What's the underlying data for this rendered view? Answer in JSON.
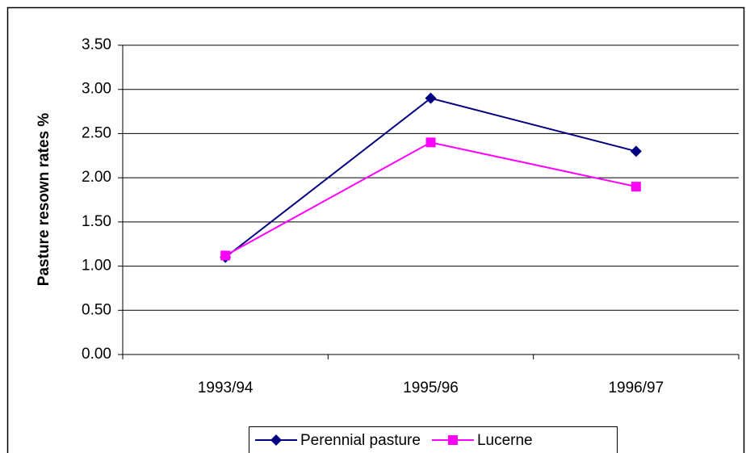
{
  "chart_data": {
    "type": "line",
    "y_label": "Pasture resown rates %",
    "categories": [
      "1993/94",
      "1995/96",
      "1996/97"
    ],
    "series": [
      {
        "name": "Perennial pasture",
        "color": "#000080",
        "marker": "diamond",
        "values": [
          1.1,
          2.9,
          2.3
        ]
      },
      {
        "name": "Lucerne",
        "color": "#ff00ff",
        "marker": "square",
        "values": [
          1.12,
          2.4,
          1.9
        ]
      }
    ],
    "ylim": [
      0,
      3.5
    ],
    "yticks": [
      {
        "value": 0,
        "label": "0.00"
      },
      {
        "value": 0.5,
        "label": "0.50"
      },
      {
        "value": 1,
        "label": "1.00"
      },
      {
        "value": 1.5,
        "label": "1.50"
      },
      {
        "value": 2,
        "label": "2.00"
      },
      {
        "value": 2.5,
        "label": "2.50"
      },
      {
        "value": 3,
        "label": "3.00"
      },
      {
        "value": 3.5,
        "label": "3.50"
      }
    ],
    "grid": true,
    "legend": "bottom"
  }
}
